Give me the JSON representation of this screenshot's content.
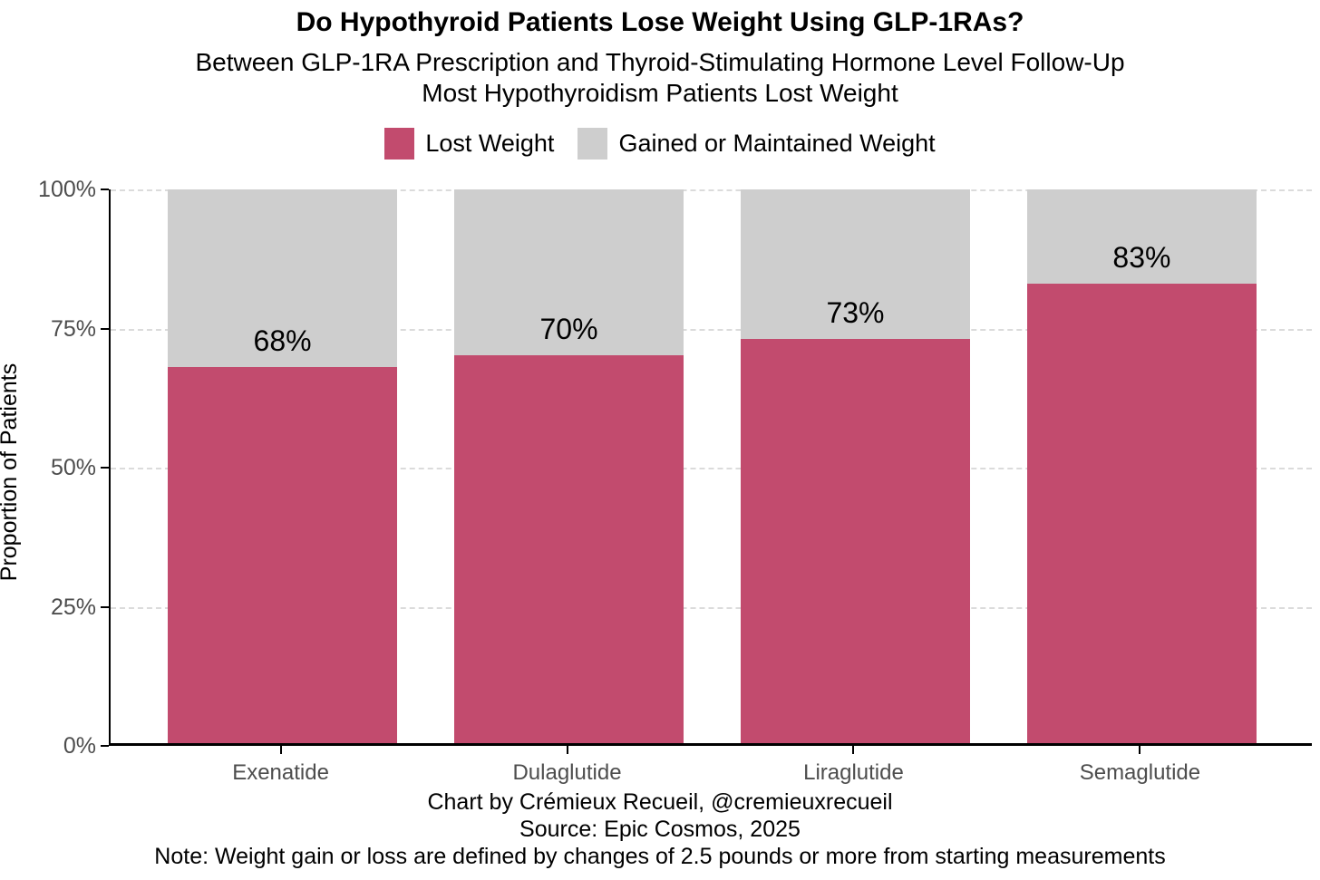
{
  "title": "Do Hypothyroid Patients Lose Weight Using GLP-1RAs?",
  "subtitle_line1": "Between GLP-1RA Prescription and Thyroid-Stimulating Hormone Level Follow-Up",
  "subtitle_line2": "Most Hypothyroidism Patients Lost Weight",
  "legend": {
    "items": [
      {
        "label": "Lost Weight",
        "color": "#C24B6E"
      },
      {
        "label": "Gained or Maintained Weight",
        "color": "#CECECE"
      }
    ],
    "position": "top"
  },
  "chart_data": {
    "type": "bar",
    "stacked": true,
    "categories": [
      "Exenatide",
      "Dulaglutide",
      "Liraglutide",
      "Semaglutide"
    ],
    "series": [
      {
        "name": "Lost Weight",
        "color": "#C24B6E",
        "values": [
          68,
          70,
          73,
          83
        ]
      },
      {
        "name": "Gained or Maintained Weight",
        "color": "#CECECE",
        "values": [
          32,
          30,
          27,
          17
        ]
      }
    ],
    "bar_labels": [
      "68%",
      "70%",
      "73%",
      "83%"
    ],
    "title": "Do Hypothyroid Patients Lose Weight Using GLP-1RAs?",
    "xlabel": "",
    "ylabel": "Proportion of Patients",
    "yticks": [
      {
        "value": 0,
        "label": "0%"
      },
      {
        "value": 25,
        "label": "25%"
      },
      {
        "value": 50,
        "label": "50%"
      },
      {
        "value": 75,
        "label": "75%"
      },
      {
        "value": 100,
        "label": "100%"
      }
    ],
    "ylim": [
      0,
      100
    ],
    "grid": "horizontal-dashed",
    "legend_position": "top"
  },
  "colors": {
    "lost_weight": "#C24B6E",
    "gained_weight": "#CECECE",
    "gridline": "#DBDBDB",
    "axis_line": "#000000",
    "axis_tick_text": "#4D4D4D",
    "text": "#000000"
  },
  "footer": {
    "credit": "Chart by Crémieux Recueil, @cremieuxrecueil",
    "source": "Source: Epic Cosmos, 2025",
    "note": "Note: Weight gain or loss are defined by changes of 2.5 pounds or more from starting measurements"
  }
}
